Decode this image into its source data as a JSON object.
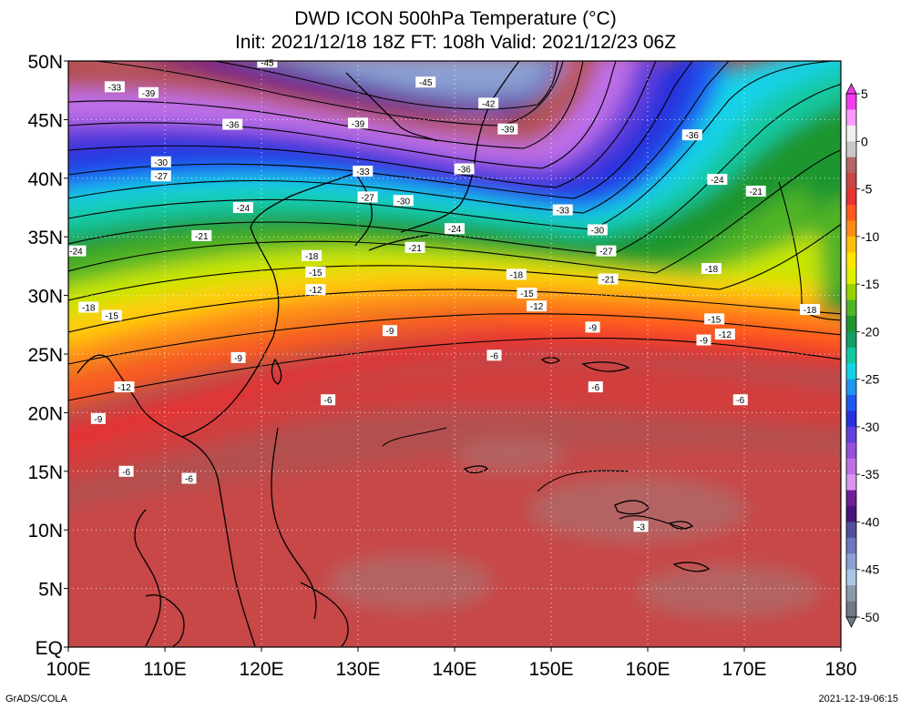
{
  "title": {
    "line1": "DWD ICON 500hPa Temperature (°C)",
    "line2": "Init: 2021/12/18 18Z  FT: 108h  Valid: 2021/12/23 06Z"
  },
  "credits": {
    "left": "GrADS/COLA",
    "right": "2021-12-19-06:15"
  },
  "map": {
    "lon_range": [
      100,
      180
    ],
    "lat_range": [
      0,
      50
    ],
    "x_ticks": [
      "100E",
      "110E",
      "120E",
      "130E",
      "140E",
      "150E",
      "160E",
      "170E",
      "180"
    ],
    "y_ticks": [
      "EQ",
      "5N",
      "10N",
      "15N",
      "20N",
      "25N",
      "30N",
      "35N",
      "40N",
      "45N",
      "50N"
    ],
    "grid": "dotted"
  },
  "colorbar": {
    "labels": [
      "5",
      "0",
      "-5",
      "-10",
      "-15",
      "-20",
      "-25",
      "-30",
      "-35",
      "-40",
      "-45",
      "-50"
    ],
    "colors": [
      "#f03cf0",
      "#ff99ff",
      "#f0f0f0",
      "#c8c8c8",
      "#b46464",
      "#c84646",
      "#e63232",
      "#ff5a1e",
      "#ff8c14",
      "#ffbe0a",
      "#ffe600",
      "#dcf000",
      "#96d200",
      "#50b428",
      "#1e962d",
      "#14a064",
      "#14c8a0",
      "#14d2e6",
      "#1e96f0",
      "#1e5af0",
      "#2832dc",
      "#6440dc",
      "#9650dc",
      "#be6ee6",
      "#dc96f0",
      "#6e1e96",
      "#461478",
      "#50509a",
      "#6e78be",
      "#8ca0d2",
      "#aac8e6",
      "#8a9aa8",
      "#707a84"
    ]
  },
  "contour_labels": [
    {
      "v": "-45",
      "lon": 120.6,
      "lat": 49.9
    },
    {
      "v": "-45",
      "lon": 137.0,
      "lat": 48.2
    },
    {
      "v": "-42",
      "lon": 143.5,
      "lat": 46.4
    },
    {
      "v": "-39",
      "lon": 145.5,
      "lat": 44.2
    },
    {
      "v": "-39",
      "lon": 130.0,
      "lat": 44.7
    },
    {
      "v": "-39",
      "lon": 108.3,
      "lat": 47.3
    },
    {
      "v": "-36",
      "lon": 117.0,
      "lat": 44.6
    },
    {
      "v": "-36",
      "lon": 141.0,
      "lat": 40.8
    },
    {
      "v": "-36",
      "lon": 164.6,
      "lat": 43.7
    },
    {
      "v": "-33",
      "lon": 104.8,
      "lat": 47.8
    },
    {
      "v": "-33",
      "lon": 130.5,
      "lat": 40.6
    },
    {
      "v": "-33",
      "lon": 151.2,
      "lat": 37.3
    },
    {
      "v": "-30",
      "lon": 109.6,
      "lat": 41.4
    },
    {
      "v": "-30",
      "lon": 134.7,
      "lat": 38.1
    },
    {
      "v": "-30",
      "lon": 154.8,
      "lat": 35.6
    },
    {
      "v": "-27",
      "lon": 109.6,
      "lat": 40.2
    },
    {
      "v": "-27",
      "lon": 131.0,
      "lat": 38.4
    },
    {
      "v": "-27",
      "lon": 155.7,
      "lat": 33.8
    },
    {
      "v": "-24",
      "lon": 118.1,
      "lat": 37.5
    },
    {
      "v": "-24",
      "lon": 140.0,
      "lat": 35.7
    },
    {
      "v": "-24",
      "lon": 167.2,
      "lat": 39.9
    },
    {
      "v": "-24",
      "lon": 100.8,
      "lat": 33.8
    },
    {
      "v": "-21",
      "lon": 113.8,
      "lat": 35.1
    },
    {
      "v": "-21",
      "lon": 135.9,
      "lat": 34.1
    },
    {
      "v": "-21",
      "lon": 155.9,
      "lat": 31.4
    },
    {
      "v": "-21",
      "lon": 171.2,
      "lat": 38.9
    },
    {
      "v": "-18",
      "lon": 125.2,
      "lat": 33.4
    },
    {
      "v": "-18",
      "lon": 146.4,
      "lat": 31.8
    },
    {
      "v": "-18",
      "lon": 166.6,
      "lat": 32.3
    },
    {
      "v": "-18",
      "lon": 102.1,
      "lat": 29.0
    },
    {
      "v": "-18",
      "lon": 176.8,
      "lat": 28.8
    },
    {
      "v": "-15",
      "lon": 125.6,
      "lat": 32.0
    },
    {
      "v": "-15",
      "lon": 147.5,
      "lat": 30.2
    },
    {
      "v": "-15",
      "lon": 166.9,
      "lat": 28.0
    },
    {
      "v": "-15",
      "lon": 104.5,
      "lat": 28.3
    },
    {
      "v": "-12",
      "lon": 125.6,
      "lat": 30.5
    },
    {
      "v": "-12",
      "lon": 148.5,
      "lat": 29.1
    },
    {
      "v": "-12",
      "lon": 168.0,
      "lat": 26.7
    },
    {
      "v": "-12",
      "lon": 105.8,
      "lat": 22.2
    },
    {
      "v": "-9",
      "lon": 133.3,
      "lat": 27.0
    },
    {
      "v": "-9",
      "lon": 154.3,
      "lat": 27.3
    },
    {
      "v": "-9",
      "lon": 165.8,
      "lat": 26.2
    },
    {
      "v": "-9",
      "lon": 117.6,
      "lat": 24.7
    },
    {
      "v": "-9",
      "lon": 103.1,
      "lat": 19.5
    },
    {
      "v": "-6",
      "lon": 144.1,
      "lat": 24.9
    },
    {
      "v": "-6",
      "lon": 154.6,
      "lat": 22.2
    },
    {
      "v": "-6",
      "lon": 169.6,
      "lat": 21.1
    },
    {
      "v": "-6",
      "lon": 126.9,
      "lat": 21.1
    },
    {
      "v": "-6",
      "lon": 106.0,
      "lat": 15.0
    },
    {
      "v": "-6",
      "lon": 112.5,
      "lat": 14.4
    },
    {
      "v": "-3",
      "lon": 159.3,
      "lat": 10.3
    }
  ]
}
